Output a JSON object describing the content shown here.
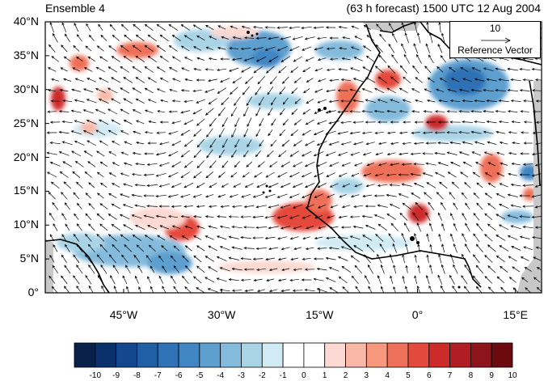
{
  "title_left": "Ensemble 4",
  "title_right": "(63 h forecast) 1500 UTC 12 Aug 2004",
  "y_ticks": [
    {
      "label": "40°N",
      "lat": 40
    },
    {
      "label": "35°N",
      "lat": 35
    },
    {
      "label": "30°N",
      "lat": 30
    },
    {
      "label": "25°N",
      "lat": 25
    },
    {
      "label": "20°N",
      "lat": 20
    },
    {
      "label": "15°N",
      "lat": 15
    },
    {
      "label": "10°N",
      "lat": 10
    },
    {
      "label": "5°N",
      "lat": 5
    },
    {
      "label": "0°",
      "lat": 0
    }
  ],
  "x_ticks": [
    {
      "label": "45°W",
      "lon": -45
    },
    {
      "label": "30°W",
      "lon": -30
    },
    {
      "label": "15°W",
      "lon": -15
    },
    {
      "label": "0°",
      "lon": 0
    },
    {
      "label": "15°E",
      "lon": 15
    }
  ],
  "extent": {
    "lon_min": -57,
    "lon_max": 19,
    "lat_min": 0,
    "lat_max": 40
  },
  "reference_vector": {
    "value": "10",
    "label": "Reference Vector"
  },
  "colorbar": {
    "labels": [
      "-10",
      "-9",
      "-8",
      "-7",
      "-6",
      "-5",
      "-4",
      "-3",
      "-2",
      "-1",
      "0",
      "1",
      "2",
      "3",
      "4",
      "5",
      "6",
      "7",
      "8",
      "9",
      "10"
    ],
    "colors": [
      "#08204a",
      "#0a316b",
      "#13488f",
      "#1f5fa6",
      "#2f72b5",
      "#3f86c2",
      "#5d9fcf",
      "#84bbdc",
      "#a9d4e6",
      "#d0ebf4",
      "#ffffff",
      "#ffffff",
      "#fcd9d2",
      "#f9b8a7",
      "#f6977e",
      "#ef7058",
      "#e44a3b",
      "#cd2a2a",
      "#b01d24",
      "#8d141b",
      "#6b0b10"
    ]
  }
}
